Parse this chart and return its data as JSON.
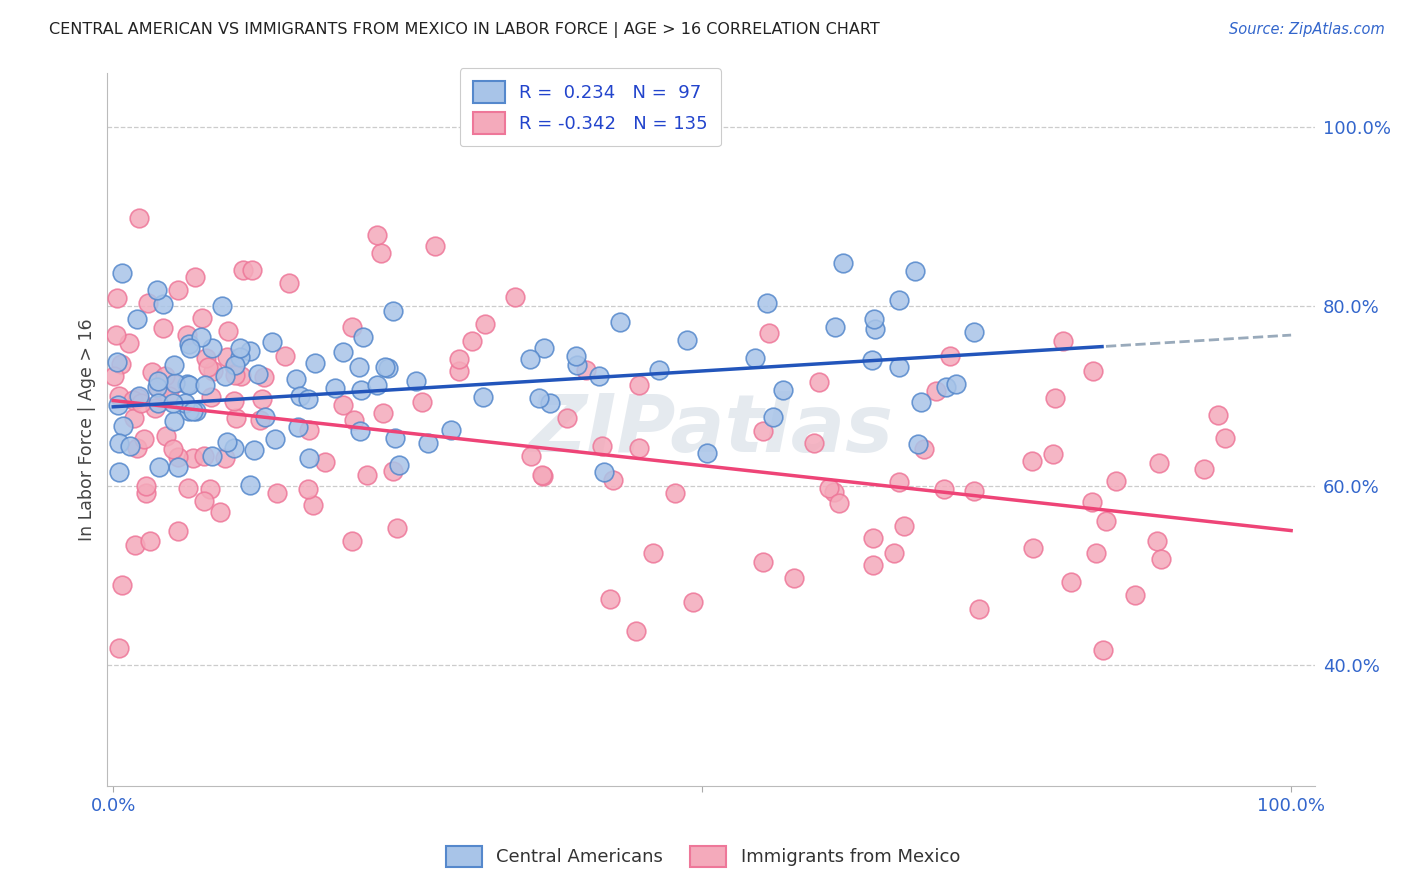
{
  "title": "CENTRAL AMERICAN VS IMMIGRANTS FROM MEXICO IN LABOR FORCE | AGE > 16 CORRELATION CHART",
  "source": "Source: ZipAtlas.com",
  "ylabel": "In Labor Force | Age > 16",
  "blue_R": 0.234,
  "blue_N": 97,
  "pink_R": -0.342,
  "pink_N": 135,
  "blue_fill_color": "#A8C4E8",
  "blue_edge_color": "#5588CC",
  "pink_fill_color": "#F4AABB",
  "pink_edge_color": "#EE7799",
  "blue_line_color": "#2255BB",
  "pink_line_color": "#EE4477",
  "dashed_line_color": "#99AABB",
  "background_color": "#FFFFFF",
  "grid_color": "#CCCCCC",
  "watermark_color": "#AABBCC",
  "legend_text_color": "#2244CC",
  "title_color": "#222222",
  "source_color": "#3366CC",
  "axis_tick_color": "#3366CC",
  "ylabel_color": "#444444"
}
